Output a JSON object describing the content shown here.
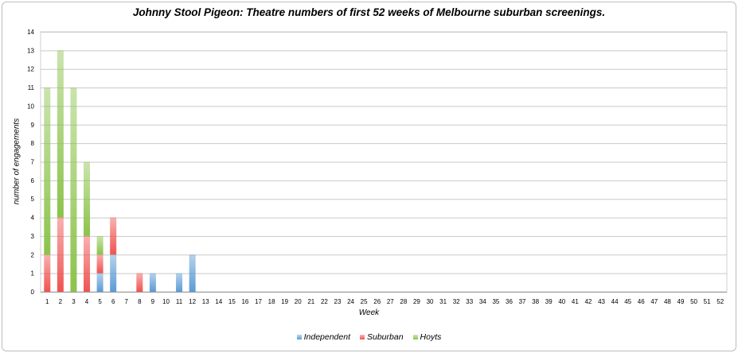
{
  "chart_data": {
    "type": "bar",
    "stacked": true,
    "title": "Johnny Stool Pigeon: Theatre numbers of first 52 weeks of Melbourne suburban screenings.",
    "xlabel": "Week",
    "ylabel": "number of engagements",
    "ylim": [
      0,
      14
    ],
    "yticks": [
      "0",
      "1",
      "2",
      "3",
      "4",
      "5",
      "6",
      "7",
      "8",
      "9",
      "10",
      "11",
      "12",
      "13",
      "14"
    ],
    "categories": [
      "1",
      "2",
      "3",
      "4",
      "5",
      "6",
      "7",
      "8",
      "9",
      "10",
      "11",
      "12",
      "13",
      "14",
      "15",
      "16",
      "17",
      "18",
      "19",
      "20",
      "21",
      "22",
      "23",
      "24",
      "25",
      "26",
      "27",
      "28",
      "29",
      "30",
      "31",
      "32",
      "33",
      "34",
      "35",
      "36",
      "37",
      "38",
      "39",
      "40",
      "41",
      "42",
      "43",
      "44",
      "45",
      "46",
      "47",
      "48",
      "49",
      "50",
      "51",
      "52"
    ],
    "grid": true,
    "legend_position": "bottom",
    "series": [
      {
        "name": "Independent",
        "color": "#5b9bd5",
        "values": [
          0,
          0,
          0,
          0,
          1,
          2,
          0,
          0,
          1,
          0,
          1,
          2,
          0,
          0,
          0,
          0,
          0,
          0,
          0,
          0,
          0,
          0,
          0,
          0,
          0,
          0,
          0,
          0,
          0,
          0,
          0,
          0,
          0,
          0,
          0,
          0,
          0,
          0,
          0,
          0,
          0,
          0,
          0,
          0,
          0,
          0,
          0,
          0,
          0,
          0,
          0,
          0
        ]
      },
      {
        "name": "Suburban",
        "color": "#ef5350",
        "values": [
          2,
          4,
          0,
          3,
          1,
          2,
          0,
          1,
          0,
          0,
          0,
          0,
          0,
          0,
          0,
          0,
          0,
          0,
          0,
          0,
          0,
          0,
          0,
          0,
          0,
          0,
          0,
          0,
          0,
          0,
          0,
          0,
          0,
          0,
          0,
          0,
          0,
          0,
          0,
          0,
          0,
          0,
          0,
          0,
          0,
          0,
          0,
          0,
          0,
          0,
          0,
          0
        ]
      },
      {
        "name": "Hoyts",
        "color": "#8bc34a",
        "values": [
          9,
          9,
          11,
          4,
          1,
          0,
          0,
          0,
          0,
          0,
          0,
          0,
          0,
          0,
          0,
          0,
          0,
          0,
          0,
          0,
          0,
          0,
          0,
          0,
          0,
          0,
          0,
          0,
          0,
          0,
          0,
          0,
          0,
          0,
          0,
          0,
          0,
          0,
          0,
          0,
          0,
          0,
          0,
          0,
          0,
          0,
          0,
          0,
          0,
          0,
          0,
          0
        ]
      }
    ]
  }
}
